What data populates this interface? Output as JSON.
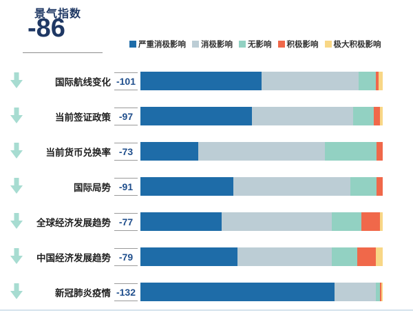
{
  "header": {
    "title": "景气指数",
    "index_value": "-86"
  },
  "legend": [
    {
      "label": "严重消极影响",
      "color": "#1e6ca8"
    },
    {
      "label": "消极影响",
      "color": "#bccdd5"
    },
    {
      "label": "无影响",
      "color": "#92d1c2"
    },
    {
      "label": "积极影响",
      "color": "#f0684a"
    },
    {
      "label": "极大积极影响",
      "color": "#f8d786"
    }
  ],
  "chart_data": {
    "type": "bar",
    "stacked": true,
    "orientation": "horizontal",
    "title": "景气指数",
    "index_value": -86,
    "unit": "percent of responses per impact level",
    "legend_position": "top",
    "series_labels": [
      "严重消极影响",
      "消极影响",
      "无影响",
      "积极影响",
      "极大积极影响"
    ],
    "series_colors": [
      "#1e6ca8",
      "#bccdd5",
      "#92d1c2",
      "#f0684a",
      "#f8d786"
    ],
    "rows": [
      {
        "label": "国际航线变化",
        "score": -101,
        "score_display": "-101",
        "trend": "down",
        "segments": [
          50.0,
          40.1,
          7.1,
          1.1,
          1.7
        ]
      },
      {
        "label": "当前签证政策",
        "score": -97,
        "score_display": "-97",
        "trend": "down",
        "segments": [
          46.0,
          41.8,
          8.5,
          2.6,
          1.1
        ]
      },
      {
        "label": "当前货币兑换率",
        "score": -73,
        "score_display": "-73",
        "trend": "down",
        "segments": [
          23.9,
          52.3,
          21.3,
          2.5,
          0
        ]
      },
      {
        "label": "国际局势",
        "score": -91,
        "score_display": "-91",
        "trend": "down",
        "segments": [
          38.4,
          48.3,
          10.8,
          2.5,
          0
        ]
      },
      {
        "label": "全球经济发展趋势",
        "score": -77,
        "score_display": "-77",
        "trend": "down",
        "segments": [
          33.5,
          45.5,
          12.2,
          7.7,
          1.1
        ]
      },
      {
        "label": "中国经济发展趋势",
        "score": -79,
        "score_display": "-79",
        "trend": "down",
        "segments": [
          40.1,
          38.9,
          10.5,
          7.7,
          2.8
        ]
      },
      {
        "label": "新冠肺炎疫情",
        "score": -132,
        "score_display": "-132",
        "trend": "down",
        "segments": [
          80.0,
          17.3,
          1.6,
          0.6,
          0.5
        ]
      }
    ]
  },
  "colors": {
    "title_navy": "#1f3864",
    "score_blue": "#1f4e8c",
    "label_dark": "#1f1f1f",
    "arrow_teal": "#a7dcd1",
    "divider_gray": "#8c8c8c",
    "score_border_gray": "#999999",
    "bottom_line_blue": "#d4e2ec"
  }
}
